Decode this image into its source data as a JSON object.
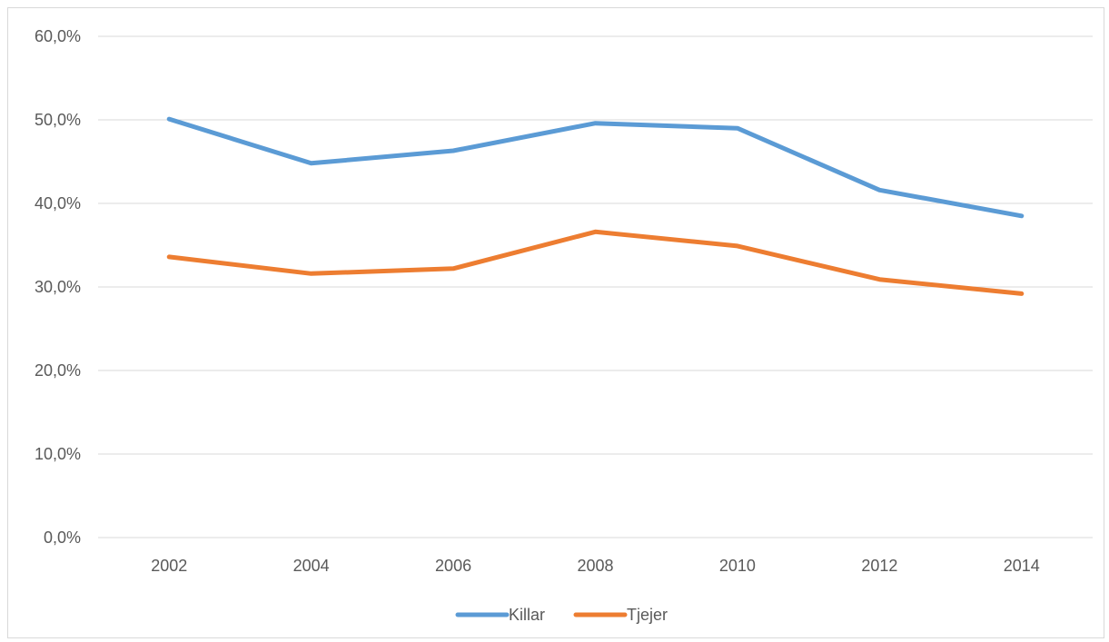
{
  "chart_data": {
    "type": "line",
    "title": "",
    "xlabel": "",
    "ylabel": "",
    "categories": [
      "2002",
      "2004",
      "2006",
      "2008",
      "2010",
      "2012",
      "2014"
    ],
    "ylim": [
      0,
      60
    ],
    "yticks": [
      0,
      10,
      20,
      30,
      40,
      50,
      60
    ],
    "ytick_labels": [
      "0,0%",
      "10,0%",
      "20,0%",
      "30,0%",
      "40,0%",
      "50,0%",
      "60,0%"
    ],
    "grid": true,
    "legend_position": "bottom",
    "series": [
      {
        "name": "Killar",
        "color": "#5B9BD5",
        "values": [
          50.1,
          44.8,
          46.3,
          49.6,
          49.0,
          41.6,
          38.5
        ]
      },
      {
        "name": "Tjejer",
        "color": "#ED7D31",
        "values": [
          33.6,
          31.6,
          32.2,
          36.6,
          34.9,
          30.9,
          29.2
        ]
      }
    ]
  }
}
